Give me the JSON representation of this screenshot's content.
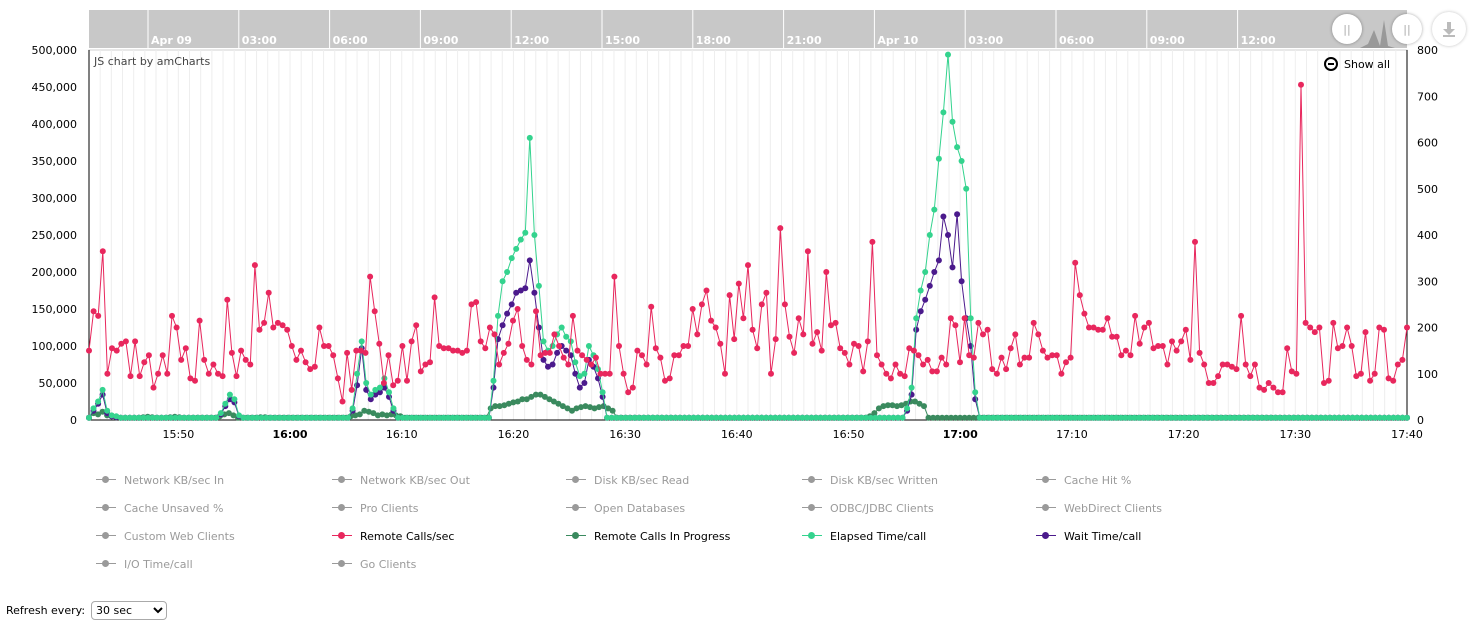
{
  "chart_data": {
    "type": "line",
    "credit": "JS chart by amCharts",
    "x_tick_labels": [
      "15:50",
      "16:00",
      "16:10",
      "16:20",
      "16:30",
      "16:40",
      "16:50",
      "17:00",
      "17:10",
      "17:20",
      "17:30",
      "17:40"
    ],
    "x_bold_ticks": [
      "16:00",
      "17:00"
    ],
    "x_range": [
      "15:42",
      "17:40"
    ],
    "y_left": {
      "ticks": [
        "0",
        "50,000",
        "100,000",
        "150,000",
        "200,000",
        "250,000",
        "300,000",
        "350,000",
        "400,000",
        "450,000",
        "500,000"
      ],
      "range": [
        0,
        500000
      ]
    },
    "y_right": {
      "ticks": [
        "0",
        "100",
        "200",
        "300",
        "400",
        "500",
        "600",
        "700",
        "800"
      ],
      "range": [
        0,
        800
      ]
    },
    "grid": true,
    "series": [
      {
        "name": "Remote Calls/sec",
        "color": "#e8275d",
        "axis": "right",
        "values": [
          150,
          235,
          225,
          365,
          100,
          155,
          150,
          165,
          170,
          95,
          170,
          95,
          125,
          140,
          70,
          100,
          140,
          100,
          225,
          200,
          130,
          155,
          90,
          85,
          215,
          130,
          100,
          120,
          100,
          95,
          260,
          145,
          95,
          150,
          130,
          120,
          335,
          195,
          210,
          275,
          200,
          210,
          205,
          195,
          160,
          130,
          150,
          125,
          110,
          115,
          200,
          160,
          160,
          140,
          90,
          40,
          145,
          65,
          150,
          150,
          145,
          310,
          235,
          165,
          80,
          140,
          75,
          85,
          160,
          85,
          170,
          205,
          105,
          120,
          125,
          265,
          160,
          155,
          155,
          150,
          150,
          145,
          150,
          250,
          255,
          170,
          155,
          200,
          185,
          120,
          145,
          165,
          215,
          240,
          160,
          130,
          120,
          235,
          140,
          145,
          145,
          185,
          160,
          135,
          120,
          225,
          150,
          140,
          130,
          120,
          135,
          100,
          100,
          100,
          310,
          160,
          100,
          60,
          70,
          150,
          140,
          120,
          245,
          155,
          135,
          85,
          90,
          140,
          140,
          160,
          160,
          240,
          185,
          250,
          280,
          215,
          200,
          165,
          100,
          270,
          175,
          295,
          220,
          335,
          195,
          155,
          250,
          275,
          100,
          175,
          415,
          250,
          180,
          145,
          220,
          185,
          365,
          165,
          190,
          150,
          320,
          205,
          210,
          155,
          145,
          120,
          165,
          160,
          105,
          170,
          385,
          140,
          120,
          100,
          90,
          120,
          100,
          95,
          155,
          150,
          140,
          120,
          130,
          105,
          105,
          135,
          120,
          220,
          205,
          125,
          220,
          140,
          135,
          210,
          185,
          195,
          110,
          100,
          135,
          110,
          155,
          185,
          120,
          135,
          135,
          210,
          185,
          150,
          135,
          140,
          140,
          100,
          125,
          135,
          340,
          270,
          230,
          200,
          200,
          195,
          195,
          220,
          180,
          180,
          140,
          150,
          140,
          225,
          165,
          200,
          210,
          155,
          160,
          160,
          120,
          170,
          150,
          170,
          195,
          130,
          385,
          145,
          120,
          80,
          80,
          95,
          120,
          120,
          115,
          110,
          225,
          120,
          95,
          120,
          70,
          65,
          80,
          70,
          60,
          60,
          155,
          105,
          100,
          725,
          210,
          200,
          190,
          200,
          80,
          85,
          210,
          155,
          160,
          200,
          160,
          95,
          100,
          190,
          85,
          100,
          200,
          195,
          90,
          85,
          120,
          130,
          200
        ],
        "marker": "circle"
      },
      {
        "name": "Remote Calls In Progress",
        "color": "#3a8a5e",
        "axis": "right",
        "values": [
          5,
          15,
          12,
          18,
          10,
          8,
          6,
          5,
          5,
          5,
          5,
          5,
          6,
          7,
          6,
          5,
          5,
          5,
          6,
          7,
          6,
          5,
          5,
          5,
          5,
          5,
          5,
          5,
          5,
          8,
          12,
          15,
          10,
          5,
          5,
          5,
          5,
          5,
          6,
          6,
          5,
          5,
          5,
          5,
          5,
          5,
          5,
          5,
          5,
          5,
          5,
          5,
          5,
          5,
          5,
          5,
          5,
          5,
          8,
          10,
          12,
          20,
          18,
          15,
          10,
          12,
          10,
          12,
          10,
          8,
          5,
          5,
          5,
          5,
          5,
          5,
          5,
          5,
          5,
          5,
          5,
          5,
          5,
          5,
          5,
          5,
          5,
          5,
          5,
          25,
          30,
          30,
          32,
          35,
          38,
          40,
          45,
          45,
          50,
          55,
          55,
          50,
          45,
          40,
          35,
          30,
          25,
          20,
          25,
          28,
          30,
          28,
          25,
          28,
          30,
          25,
          20,
          5,
          5,
          5,
          5,
          5,
          5,
          5,
          5,
          5,
          5,
          5,
          5,
          5,
          5,
          5,
          5,
          5,
          5,
          5,
          5,
          5,
          5,
          5,
          5,
          5,
          5,
          5,
          5,
          5,
          5,
          5,
          5,
          5,
          5,
          5,
          5,
          5,
          5,
          5,
          5,
          5,
          5,
          5,
          5,
          5,
          5,
          5,
          5,
          5,
          5,
          5,
          5,
          5,
          5,
          5,
          5,
          8,
          15,
          25,
          30,
          32,
          32,
          30,
          32,
          35,
          40,
          40,
          35,
          30,
          5,
          5,
          5,
          5,
          5,
          5,
          5,
          5,
          5,
          5,
          5,
          5,
          5,
          5,
          5,
          5,
          5,
          5,
          5,
          5,
          5,
          5,
          5,
          5,
          5,
          5,
          5,
          5,
          5,
          5,
          5,
          5,
          5,
          5,
          5,
          5,
          5,
          5,
          5,
          5,
          5,
          5,
          5,
          5,
          5,
          5,
          5,
          5,
          5,
          5,
          5,
          5,
          5,
          5,
          5,
          5,
          5,
          5,
          5,
          5,
          5,
          5,
          5,
          5,
          5,
          5,
          5,
          5,
          5,
          5,
          5,
          5,
          5,
          5,
          5,
          5,
          5,
          5,
          5,
          5,
          5,
          5,
          5,
          5,
          5,
          5,
          5,
          5,
          5,
          5,
          5,
          5,
          5,
          5,
          5,
          5,
          5,
          5,
          5,
          5,
          5,
          5,
          5,
          5,
          5,
          5,
          5
        ],
        "marker": "circle"
      },
      {
        "name": "Elapsed Time/call",
        "color": "#34d38e",
        "axis": "right",
        "values": [
          5,
          25,
          40,
          65,
          20,
          10,
          8,
          5,
          5,
          5,
          5,
          5,
          5,
          5,
          5,
          5,
          5,
          5,
          5,
          5,
          5,
          5,
          5,
          5,
          5,
          5,
          5,
          5,
          5,
          15,
          35,
          55,
          45,
          10,
          5,
          5,
          5,
          5,
          5,
          5,
          5,
          5,
          5,
          5,
          5,
          5,
          5,
          5,
          5,
          5,
          5,
          5,
          5,
          5,
          5,
          5,
          5,
          5,
          25,
          100,
          170,
          80,
          55,
          65,
          70,
          90,
          60,
          25,
          5,
          5,
          5,
          5,
          5,
          5,
          5,
          5,
          5,
          5,
          5,
          5,
          5,
          5,
          5,
          5,
          5,
          5,
          5,
          5,
          5,
          85,
          225,
          300,
          320,
          350,
          370,
          390,
          405,
          610,
          400,
          290,
          170,
          150,
          160,
          185,
          200,
          180,
          170,
          125,
          95,
          100,
          160,
          140,
          110,
          60,
          5,
          5,
          5,
          5,
          5,
          5,
          5,
          5,
          5,
          5,
          5,
          5,
          5,
          5,
          5,
          5,
          5,
          5,
          5,
          5,
          5,
          5,
          5,
          5,
          5,
          5,
          5,
          5,
          5,
          5,
          5,
          5,
          5,
          5,
          5,
          5,
          5,
          5,
          5,
          5,
          5,
          5,
          5,
          5,
          5,
          5,
          5,
          5,
          5,
          5,
          5,
          5,
          5,
          5,
          5,
          5,
          5,
          5,
          5,
          5,
          5,
          5,
          5,
          5,
          5,
          5,
          25,
          70,
          220,
          280,
          320,
          400,
          455,
          565,
          665,
          790,
          645,
          590,
          560,
          500,
          220,
          60,
          5,
          5,
          5,
          5,
          5,
          5,
          5,
          5,
          5,
          5,
          5,
          5,
          5,
          5,
          5,
          5,
          5,
          5,
          5,
          5,
          5,
          5,
          5,
          5,
          5,
          5,
          5,
          5,
          5,
          5,
          5,
          5,
          5,
          5,
          5,
          5,
          5,
          5,
          5,
          5,
          5,
          5,
          5,
          5,
          5,
          5,
          5,
          5,
          5,
          5,
          5,
          5,
          5,
          5,
          5,
          5,
          5,
          5,
          5,
          5,
          5,
          5,
          5,
          5,
          5,
          5,
          5,
          5,
          5,
          5,
          5,
          5,
          5,
          5,
          5,
          5,
          5,
          5,
          5,
          5,
          5,
          5,
          5,
          5,
          5,
          5,
          5,
          5,
          5,
          5,
          5,
          5,
          5,
          5,
          5
        ],
        "marker": "circle"
      },
      {
        "name": "Wait Time/call",
        "color": "#4b1a8c",
        "axis": "right",
        "values": [
          5,
          20,
          35,
          55,
          15,
          8,
          6,
          5,
          5,
          5,
          5,
          5,
          5,
          5,
          5,
          5,
          5,
          5,
          5,
          5,
          5,
          5,
          5,
          5,
          5,
          5,
          5,
          5,
          5,
          12,
          30,
          45,
          38,
          8,
          5,
          5,
          5,
          5,
          5,
          5,
          5,
          5,
          5,
          5,
          5,
          5,
          5,
          5,
          5,
          5,
          5,
          5,
          5,
          5,
          5,
          5,
          5,
          5,
          20,
          75,
          155,
          65,
          45,
          55,
          60,
          70,
          50,
          20,
          5,
          5,
          5,
          5,
          5,
          5,
          5,
          5,
          5,
          5,
          5,
          5,
          5,
          5,
          5,
          5,
          5,
          5,
          5,
          5,
          5,
          70,
          175,
          205,
          230,
          250,
          275,
          280,
          285,
          345,
          275,
          200,
          130,
          115,
          120,
          145,
          160,
          150,
          140,
          100,
          70,
          80,
          130,
          115,
          90,
          50,
          5,
          5,
          5,
          5,
          5,
          5,
          5,
          5,
          5,
          5,
          5,
          5,
          5,
          5,
          5,
          5,
          5,
          5,
          5,
          5,
          5,
          5,
          5,
          5,
          5,
          5,
          5,
          5,
          5,
          5,
          5,
          5,
          5,
          5,
          5,
          5,
          5,
          5,
          5,
          5,
          5,
          5,
          5,
          5,
          5,
          5,
          5,
          5,
          5,
          5,
          5,
          5,
          5,
          5,
          5,
          5,
          5,
          5,
          5,
          5,
          5,
          5,
          5,
          5,
          5,
          5,
          20,
          55,
          195,
          235,
          260,
          290,
          320,
          345,
          440,
          400,
          330,
          445,
          300,
          220,
          160,
          45,
          5,
          5,
          5,
          5,
          5,
          5,
          5,
          5,
          5,
          5,
          5,
          5,
          5,
          5,
          5,
          5,
          5,
          5,
          5,
          5,
          5,
          5,
          5,
          5,
          5,
          5,
          5,
          5,
          5,
          5,
          5,
          5,
          5,
          5,
          5,
          5,
          5,
          5,
          5,
          5,
          5,
          5,
          5,
          5,
          5,
          5,
          5,
          5,
          5,
          5,
          5,
          5,
          5,
          5,
          5,
          5,
          5,
          5,
          5,
          5,
          5,
          5,
          5,
          5,
          5,
          5,
          5,
          5,
          5,
          5,
          5,
          5,
          5,
          5,
          5,
          5,
          5,
          5,
          5,
          5,
          5,
          5,
          5,
          5,
          5,
          5,
          5,
          5,
          5,
          5,
          5,
          5,
          5,
          5,
          5
        ],
        "marker": "circle"
      }
    ]
  },
  "scrollbar": {
    "labels": [
      "Apr 09",
      "03:00",
      "06:00",
      "09:00",
      "12:00",
      "15:00",
      "18:00",
      "21:00",
      "Apr 10",
      "03:00",
      "06:00",
      "09:00",
      "12:00"
    ],
    "bold_labels": [
      "Apr 09",
      "Apr 10"
    ]
  },
  "controls": {
    "show_all": "Show all",
    "grip_left": "||",
    "grip_right": "||",
    "download_icon": "download-arrow"
  },
  "legend": {
    "items": [
      {
        "label": "Network KB/sec In",
        "enabled": false,
        "color": "#9a9a9a"
      },
      {
        "label": "Network KB/sec Out",
        "enabled": false,
        "color": "#9a9a9a"
      },
      {
        "label": "Disk KB/sec Read",
        "enabled": false,
        "color": "#9a9a9a"
      },
      {
        "label": "Disk KB/sec Written",
        "enabled": false,
        "color": "#9a9a9a"
      },
      {
        "label": "Cache Hit %",
        "enabled": false,
        "color": "#9a9a9a"
      },
      {
        "label": "Cache Unsaved %",
        "enabled": false,
        "color": "#9a9a9a"
      },
      {
        "label": "Pro Clients",
        "enabled": false,
        "color": "#9a9a9a"
      },
      {
        "label": "Open Databases",
        "enabled": false,
        "color": "#9a9a9a"
      },
      {
        "label": "ODBC/JDBC Clients",
        "enabled": false,
        "color": "#9a9a9a"
      },
      {
        "label": "WebDirect Clients",
        "enabled": false,
        "color": "#9a9a9a"
      },
      {
        "label": "Custom Web Clients",
        "enabled": false,
        "color": "#9a9a9a"
      },
      {
        "label": "Remote Calls/sec",
        "enabled": true,
        "color": "#e8275d"
      },
      {
        "label": "Remote Calls In Progress",
        "enabled": true,
        "color": "#3a8a5e"
      },
      {
        "label": "Elapsed Time/call",
        "enabled": true,
        "color": "#34d38e"
      },
      {
        "label": "Wait Time/call",
        "enabled": true,
        "color": "#4b1a8c"
      },
      {
        "label": "I/O Time/call",
        "enabled": false,
        "color": "#9a9a9a"
      },
      {
        "label": "Go Clients",
        "enabled": false,
        "color": "#9a9a9a"
      }
    ]
  },
  "refresh": {
    "label": "Refresh every:",
    "selected": "30 sec"
  }
}
